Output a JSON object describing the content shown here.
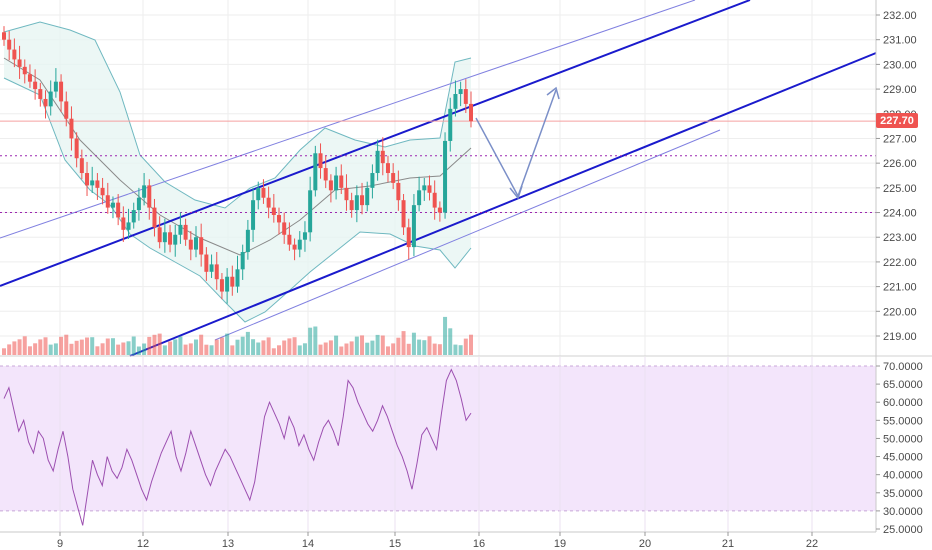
{
  "chart_data": [
    {
      "type": "candlestick",
      "y_ticks": [
        "219.00",
        "220.00",
        "221.00",
        "222.00",
        "223.00",
        "224.00",
        "225.00",
        "226.00",
        "227.00",
        "228.00",
        "229.00",
        "230.00",
        "231.00",
        "232.00"
      ],
      "ylim": [
        218.0,
        232.5
      ],
      "x_ticks": [
        "9",
        "12",
        "13",
        "14",
        "15",
        "16",
        "19",
        "20",
        "21",
        "22"
      ],
      "last_price_label": "227.70",
      "last_price": 227.7,
      "horizontal_levels": [
        226.3,
        224.0
      ],
      "colors": {
        "up": "#26a69a",
        "down": "#ef5350",
        "channel": "#1a1acc",
        "channel_outer": "#8080e0",
        "bands": "#6fb8c0",
        "level": "#9c27b0",
        "arrow": "#7b8fc8",
        "price_label": "#ef5350"
      },
      "close_approx": [
        231.0,
        230.6,
        230.2,
        229.9,
        229.6,
        229.3,
        229.0,
        228.6,
        228.3,
        228.9,
        229.3,
        228.5,
        227.8,
        227.0,
        226.2,
        225.6,
        225.1,
        225.3,
        225.0,
        224.7,
        224.2,
        224.4,
        223.8,
        223.3,
        223.6,
        224.1,
        224.6,
        225.1,
        224.2,
        223.4,
        222.8,
        223.2,
        222.7,
        223.1,
        223.5,
        222.9,
        222.5,
        223.0,
        222.3,
        221.6,
        221.9,
        221.3,
        220.8,
        221.4,
        221.0,
        221.7,
        222.4,
        223.3,
        224.5,
        225.0,
        224.6,
        224.2,
        223.9,
        223.6,
        223.1,
        222.7,
        222.5,
        222.9,
        223.2,
        224.9,
        226.4,
        225.8,
        225.3,
        224.9,
        225.5,
        225.0,
        224.5,
        224.1,
        224.7,
        224.3,
        225.0,
        225.6,
        226.5,
        226.0,
        225.6,
        225.2,
        224.5,
        223.4,
        222.6,
        224.3,
        224.9,
        225.1,
        224.8,
        224.2,
        224.0,
        226.9,
        228.2,
        228.8,
        229.0,
        228.4,
        227.7
      ],
      "rsi": {
        "y_ticks": [
          "25.0000",
          "30.0000",
          "35.0000",
          "40.0000",
          "45.0000",
          "50.0000",
          "55.0000",
          "60.0000",
          "65.0000",
          "70.0000"
        ],
        "ylim": [
          24.0,
          71.5
        ],
        "upper": 70,
        "lower": 30,
        "values": [
          61,
          64,
          58,
          52,
          55,
          49,
          46,
          52,
          50,
          44,
          41,
          47,
          52,
          45,
          36,
          31,
          26,
          35,
          44,
          40,
          37,
          45,
          41,
          39,
          42,
          47,
          44,
          40,
          36,
          33,
          38,
          42,
          46,
          49,
          52,
          45,
          41,
          46,
          52,
          48,
          44,
          40,
          37,
          41,
          44,
          47,
          45,
          42,
          39,
          36,
          33,
          38,
          47,
          56,
          60,
          57,
          54,
          50,
          56,
          53,
          48,
          51,
          47,
          44,
          49,
          53,
          55,
          52,
          48,
          56,
          66,
          64,
          60,
          57,
          54,
          52,
          55,
          59,
          56,
          52,
          48,
          45,
          41,
          36,
          43,
          51,
          53,
          50,
          47,
          57,
          66,
          69,
          66,
          61,
          55,
          57
        ]
      }
    }
  ]
}
